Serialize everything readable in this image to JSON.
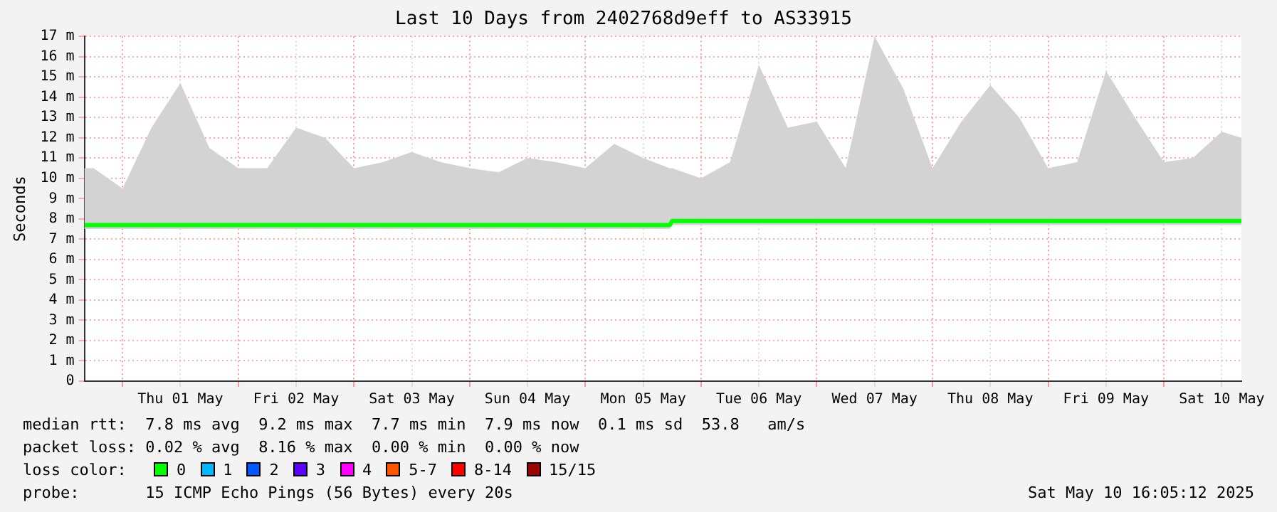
{
  "chart_data": {
    "type": "line",
    "title": "Last 10 Days from 2402768d9eff to AS33915",
    "ylabel": "Seconds",
    "x": [
      "2025-04-30T16:05",
      "2025-04-30T18:00",
      "2025-05-01T00:00",
      "2025-05-01T06:00",
      "2025-05-01T12:00",
      "2025-05-01T18:00",
      "2025-05-02T00:00",
      "2025-05-02T06:00",
      "2025-05-02T12:00",
      "2025-05-02T18:00",
      "2025-05-03T00:00",
      "2025-05-03T06:00",
      "2025-05-03T12:00",
      "2025-05-03T18:00",
      "2025-05-04T00:00",
      "2025-05-04T06:00",
      "2025-05-04T12:00",
      "2025-05-04T18:00",
      "2025-05-05T00:00",
      "2025-05-05T06:00",
      "2025-05-05T12:00",
      "2025-05-05T17:30",
      "2025-05-05T18:00",
      "2025-05-06T00:00",
      "2025-05-06T06:00",
      "2025-05-06T12:00",
      "2025-05-06T18:00",
      "2025-05-07T00:00",
      "2025-05-07T06:00",
      "2025-05-07T12:00",
      "2025-05-07T18:00",
      "2025-05-08T00:00",
      "2025-05-08T06:00",
      "2025-05-08T12:00",
      "2025-05-08T18:00",
      "2025-05-09T00:00",
      "2025-05-09T06:00",
      "2025-05-09T12:00",
      "2025-05-09T18:00",
      "2025-05-10T00:00",
      "2025-05-10T06:00",
      "2025-05-10T12:00",
      "2025-05-10T16:05"
    ],
    "series": [
      {
        "color": "#00ff00",
        "values": [
          7.7,
          7.7,
          7.7,
          7.7,
          7.7,
          7.7,
          7.7,
          7.7,
          7.7,
          7.7,
          7.7,
          7.7,
          7.7,
          7.7,
          7.7,
          7.7,
          7.7,
          7.7,
          7.7,
          7.7,
          7.7,
          7.7,
          7.9,
          7.9,
          7.9,
          7.9,
          7.9,
          7.9,
          7.9,
          7.9,
          7.9,
          7.9,
          7.9,
          7.9,
          7.9,
          7.9,
          7.9,
          7.9,
          7.9,
          7.9,
          7.9,
          7.9,
          7.9
        ],
        "lower": [
          7.5,
          7.5,
          7.5,
          7.5,
          7.5,
          7.5,
          7.5,
          7.5,
          7.5,
          7.5,
          7.5,
          7.5,
          7.5,
          7.5,
          7.5,
          7.5,
          7.5,
          7.5,
          7.5,
          7.5,
          7.5,
          7.5,
          7.7,
          7.7,
          7.7,
          7.7,
          7.7,
          7.7,
          7.7,
          7.7,
          7.7,
          7.7,
          7.7,
          7.7,
          7.7,
          7.7,
          7.7,
          7.7,
          7.7,
          7.7,
          7.7,
          7.7,
          7.7
        ],
        "upper": [
          10.5,
          10.5,
          9.5,
          12.5,
          14.7,
          11.5,
          10.5,
          10.5,
          12.5,
          12,
          10.5,
          10.8,
          11.3,
          10.8,
          10.5,
          10.3,
          11,
          10.8,
          10.5,
          11.7,
          11,
          10.5,
          10.5,
          10,
          10.8,
          15.6,
          12.5,
          12.8,
          10.5,
          17,
          14.4,
          10.5,
          12.8,
          14.6,
          13,
          10.5,
          10.8,
          15.3,
          13,
          10.8,
          11,
          12.3,
          12
        ]
      }
    ],
    "xlim": [
      "2025-04-30T16:05",
      "2025-05-10T16:05"
    ],
    "xticks": [
      {
        "value": "2025-05-01T00:00",
        "label": null
      },
      {
        "value": "2025-05-01T12:00",
        "label": "Thu 01 May"
      },
      {
        "value": "2025-05-02T00:00",
        "label": null
      },
      {
        "value": "2025-05-02T12:00",
        "label": "Fri 02 May"
      },
      {
        "value": "2025-05-03T00:00",
        "label": null
      },
      {
        "value": "2025-05-03T12:00",
        "label": "Sat 03 May"
      },
      {
        "value": "2025-05-04T00:00",
        "label": null
      },
      {
        "value": "2025-05-04T12:00",
        "label": "Sun 04 May"
      },
      {
        "value": "2025-05-05T00:00",
        "label": null
      },
      {
        "value": "2025-05-05T12:00",
        "label": "Mon 05 May"
      },
      {
        "value": "2025-05-06T00:00",
        "label": null
      },
      {
        "value": "2025-05-06T12:00",
        "label": "Tue 06 May"
      },
      {
        "value": "2025-05-07T00:00",
        "label": null
      },
      {
        "value": "2025-05-07T12:00",
        "label": "Wed 07 May"
      },
      {
        "value": "2025-05-08T00:00",
        "label": null
      },
      {
        "value": "2025-05-08T12:00",
        "label": "Thu 08 May"
      },
      {
        "value": "2025-05-09T00:00",
        "label": null
      },
      {
        "value": "2025-05-09T12:00",
        "label": "Fri 09 May"
      },
      {
        "value": "2025-05-10T00:00",
        "label": null
      },
      {
        "value": "2025-05-10T12:00",
        "label": "Sat 10 May"
      }
    ],
    "ylim": [
      0,
      17
    ],
    "yticks": [
      0,
      {
        "value": 1,
        "label": "1 m"
      },
      {
        "value": 2,
        "label": "2 m"
      },
      {
        "value": 3,
        "label": "3 m"
      },
      {
        "value": 4,
        "label": "4 m"
      },
      {
        "value": 5,
        "label": "5 m"
      },
      {
        "value": 6,
        "label": "6 m"
      },
      {
        "value": 7,
        "label": "7 m"
      },
      {
        "value": 8,
        "label": "8 m"
      },
      {
        "value": 9,
        "label": "9 m"
      },
      {
        "value": 10,
        "label": "10 m"
      },
      {
        "value": 11,
        "label": "11 m"
      },
      {
        "value": 12,
        "label": "12 m"
      },
      {
        "value": 13,
        "label": "13 m"
      },
      {
        "value": 14,
        "label": "14 m"
      },
      {
        "value": 15,
        "label": "15 m"
      },
      {
        "value": 16,
        "label": "16 m"
      },
      {
        "value": 17,
        "label": "17 m"
      }
    ],
    "grid": true,
    "legend": false,
    "annotations": [
      "median rtt:  7.8 ms avg  9.2 ms max  7.7 ms min  7.9 ms now  0.1 ms sd  53.8   am/s",
      "packet loss: 0.02 % avg  8.16 % max  0.00 % min  0.00 % now",
      "loss color:",
      "0",
      "1",
      "2",
      "3",
      "4",
      "5-7",
      "8-14",
      "15/15",
      "probe:       15 ICMP Echo Pings (56 Bytes) every 20s",
      "Sat May 10 16:05:12 2025"
    ]
  }
}
